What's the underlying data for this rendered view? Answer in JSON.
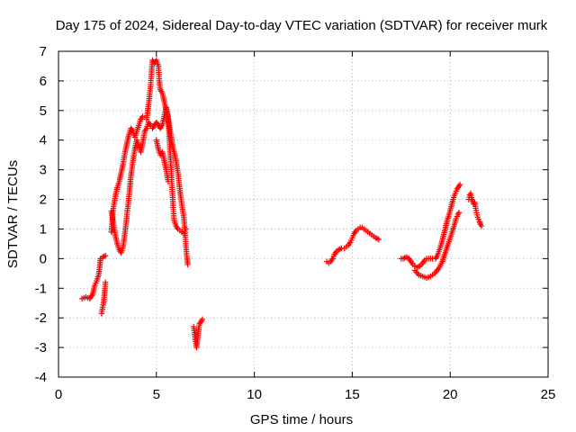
{
  "chart_data": {
    "type": "scatter",
    "title": "Day 175 of 2024, Sidereal Day-to-day VTEC variation (SDTVAR) for receiver murk",
    "xlabel": "GPS time / hours",
    "ylabel": "SDTVAR / TECUs",
    "xlim": [
      0,
      25
    ],
    "ylim": [
      -4,
      7
    ],
    "xticks": [
      0,
      5,
      10,
      15,
      20,
      25
    ],
    "yticks": [
      -4,
      -3,
      -2,
      -1,
      0,
      1,
      2,
      3,
      4,
      5,
      6,
      7
    ],
    "grid": true,
    "marker": "+",
    "color": "#ff0000",
    "series": [
      {
        "name": "SDTVAR",
        "segments": [
          [
            [
              1.2,
              -1.35
            ],
            [
              1.4,
              -1.3
            ],
            [
              1.6,
              -1.35
            ],
            [
              1.75,
              -1.2
            ],
            [
              1.85,
              -0.9
            ],
            [
              1.95,
              -0.75
            ],
            [
              2.05,
              -0.55
            ],
            [
              2.1,
              -0.3
            ],
            [
              2.15,
              0.0
            ],
            [
              2.25,
              0.05
            ],
            [
              2.4,
              0.1
            ]
          ],
          [
            [
              2.2,
              -1.85
            ],
            [
              2.3,
              -1.5
            ],
            [
              2.35,
              -1.2
            ],
            [
              2.4,
              -0.8
            ]
          ],
          [
            [
              2.7,
              0.9
            ],
            [
              2.75,
              1.3
            ],
            [
              2.8,
              1.7
            ],
            [
              2.9,
              2.1
            ],
            [
              3.0,
              2.4
            ],
            [
              3.1,
              2.6
            ],
            [
              3.2,
              2.9
            ],
            [
              3.3,
              3.2
            ],
            [
              3.4,
              3.6
            ],
            [
              3.5,
              3.9
            ],
            [
              3.6,
              4.2
            ],
            [
              3.7,
              4.4
            ],
            [
              3.8,
              4.3
            ],
            [
              3.9,
              4.1
            ],
            [
              4.0,
              4.3
            ],
            [
              4.1,
              4.5
            ],
            [
              4.2,
              4.7
            ],
            [
              4.3,
              4.8
            ]
          ],
          [
            [
              2.7,
              1.6
            ],
            [
              2.8,
              1.2
            ],
            [
              2.9,
              0.8
            ],
            [
              3.0,
              0.5
            ],
            [
              3.1,
              0.3
            ],
            [
              3.2,
              0.2
            ],
            [
              3.3,
              0.4
            ],
            [
              3.4,
              0.9
            ],
            [
              3.5,
              1.5
            ],
            [
              3.6,
              2.1
            ],
            [
              3.7,
              2.8
            ],
            [
              3.8,
              3.3
            ],
            [
              3.9,
              3.7
            ],
            [
              4.0,
              4.0
            ],
            [
              4.1,
              3.8
            ],
            [
              4.2,
              3.6
            ],
            [
              4.3,
              3.9
            ],
            [
              4.4,
              4.3
            ],
            [
              4.5,
              4.4
            ],
            [
              4.6,
              4.6
            ],
            [
              4.7,
              4.5
            ]
          ],
          [
            [
              4.5,
              4.7
            ],
            [
              4.6,
              5.2
            ],
            [
              4.7,
              5.8
            ],
            [
              4.75,
              6.3
            ],
            [
              4.8,
              6.7
            ],
            [
              4.9,
              6.6
            ],
            [
              5.0,
              6.7
            ],
            [
              5.1,
              6.5
            ],
            [
              5.15,
              6.0
            ],
            [
              5.2,
              5.7
            ],
            [
              5.3,
              5.6
            ],
            [
              5.4,
              5.3
            ],
            [
              5.5,
              5.0
            ],
            [
              5.6,
              4.7
            ],
            [
              5.7,
              4.3
            ],
            [
              5.8,
              3.9
            ],
            [
              5.9,
              3.6
            ],
            [
              6.0,
              3.3
            ],
            [
              6.1,
              2.9
            ],
            [
              6.2,
              2.3
            ],
            [
              6.3,
              1.8
            ],
            [
              6.4,
              1.4
            ],
            [
              6.45,
              1.0
            ],
            [
              6.5,
              0.5
            ],
            [
              6.55,
              0.1
            ],
            [
              6.6,
              -0.2
            ]
          ],
          [
            [
              4.8,
              4.4
            ],
            [
              4.9,
              4.5
            ],
            [
              5.0,
              4.6
            ],
            [
              5.1,
              4.5
            ],
            [
              5.2,
              4.4
            ],
            [
              5.3,
              4.5
            ],
            [
              5.4,
              4.8
            ],
            [
              5.5,
              5.1
            ],
            [
              5.6,
              4.8
            ],
            [
              5.65,
              4.2
            ],
            [
              5.7,
              3.6
            ],
            [
              5.75,
              3.0
            ],
            [
              5.8,
              2.4
            ],
            [
              5.85,
              1.8
            ],
            [
              5.9,
              1.3
            ],
            [
              6.0,
              1.1
            ],
            [
              6.1,
              1.0
            ],
            [
              6.2,
              0.95
            ],
            [
              6.3,
              0.9
            ],
            [
              6.4,
              0.85
            ],
            [
              6.5,
              1.0
            ]
          ],
          [
            [
              5.0,
              4.0
            ],
            [
              5.1,
              3.7
            ],
            [
              5.2,
              3.5
            ],
            [
              5.3,
              3.6
            ],
            [
              5.4,
              3.3
            ],
            [
              5.5,
              3.0
            ],
            [
              5.6,
              2.6
            ]
          ],
          [
            [
              6.9,
              -2.3
            ],
            [
              6.95,
              -2.5
            ],
            [
              7.0,
              -2.8
            ],
            [
              7.05,
              -3.0
            ],
            [
              7.1,
              -2.7
            ],
            [
              7.15,
              -2.4
            ],
            [
              7.2,
              -2.2
            ],
            [
              7.3,
              -2.1
            ],
            [
              7.35,
              -2.05
            ]
          ],
          [
            [
              13.7,
              -0.1
            ],
            [
              13.8,
              -0.15
            ],
            [
              13.9,
              -0.1
            ],
            [
              14.0,
              0.0
            ],
            [
              14.1,
              0.15
            ],
            [
              14.2,
              0.25
            ],
            [
              14.3,
              0.3
            ],
            [
              14.45,
              0.35
            ],
            [
              14.6,
              0.35
            ],
            [
              14.8,
              0.45
            ],
            [
              14.9,
              0.55
            ],
            [
              15.0,
              0.7
            ],
            [
              15.1,
              0.85
            ],
            [
              15.2,
              0.95
            ],
            [
              15.3,
              1.0
            ],
            [
              15.4,
              1.05
            ],
            [
              15.5,
              1.05
            ],
            [
              15.6,
              1.0
            ],
            [
              15.7,
              0.95
            ],
            [
              15.8,
              0.9
            ],
            [
              15.9,
              0.85
            ],
            [
              16.0,
              0.8
            ],
            [
              16.1,
              0.75
            ],
            [
              16.2,
              0.7
            ],
            [
              16.35,
              0.65
            ]
          ],
          [
            [
              17.5,
              0.0
            ],
            [
              17.6,
              0.0
            ],
            [
              17.75,
              0.05
            ],
            [
              17.9,
              0.0
            ],
            [
              18.0,
              -0.1
            ],
            [
              18.1,
              -0.2
            ],
            [
              18.2,
              -0.25
            ],
            [
              18.3,
              -0.3
            ],
            [
              18.45,
              -0.25
            ],
            [
              18.6,
              -0.15
            ],
            [
              18.7,
              -0.05
            ],
            [
              18.8,
              0.0
            ],
            [
              18.9,
              0.0
            ],
            [
              19.0,
              0.0
            ],
            [
              19.1,
              0.0
            ],
            [
              19.25,
              0.0
            ],
            [
              19.35,
              0.1
            ],
            [
              19.45,
              0.3
            ],
            [
              19.55,
              0.5
            ],
            [
              19.65,
              0.75
            ],
            [
              19.75,
              1.0
            ],
            [
              19.85,
              1.3
            ],
            [
              19.95,
              1.5
            ],
            [
              20.05,
              1.75
            ],
            [
              20.15,
              2.0
            ],
            [
              20.25,
              2.2
            ],
            [
              20.35,
              2.35
            ],
            [
              20.45,
              2.45
            ],
            [
              20.5,
              2.5
            ]
          ],
          [
            [
              18.2,
              -0.4
            ],
            [
              18.4,
              -0.55
            ],
            [
              18.6,
              -0.6
            ],
            [
              18.8,
              -0.65
            ],
            [
              19.0,
              -0.6
            ],
            [
              19.2,
              -0.5
            ],
            [
              19.4,
              -0.35
            ],
            [
              19.6,
              -0.1
            ],
            [
              19.75,
              0.2
            ],
            [
              19.9,
              0.5
            ],
            [
              20.0,
              0.7
            ],
            [
              20.1,
              0.9
            ],
            [
              20.2,
              1.1
            ],
            [
              20.3,
              1.35
            ],
            [
              20.4,
              1.5
            ],
            [
              20.45,
              1.55
            ]
          ],
          [
            [
              20.95,
              2.0
            ],
            [
              21.0,
              2.15
            ],
            [
              21.05,
              2.2
            ],
            [
              21.1,
              2.0
            ],
            [
              21.15,
              1.95
            ],
            [
              21.2,
              1.85
            ],
            [
              21.25,
              1.9
            ],
            [
              21.3,
              1.7
            ],
            [
              21.35,
              1.55
            ],
            [
              21.4,
              1.4
            ],
            [
              21.5,
              1.25
            ],
            [
              21.55,
              1.15
            ],
            [
              21.6,
              1.1
            ]
          ]
        ]
      }
    ]
  }
}
